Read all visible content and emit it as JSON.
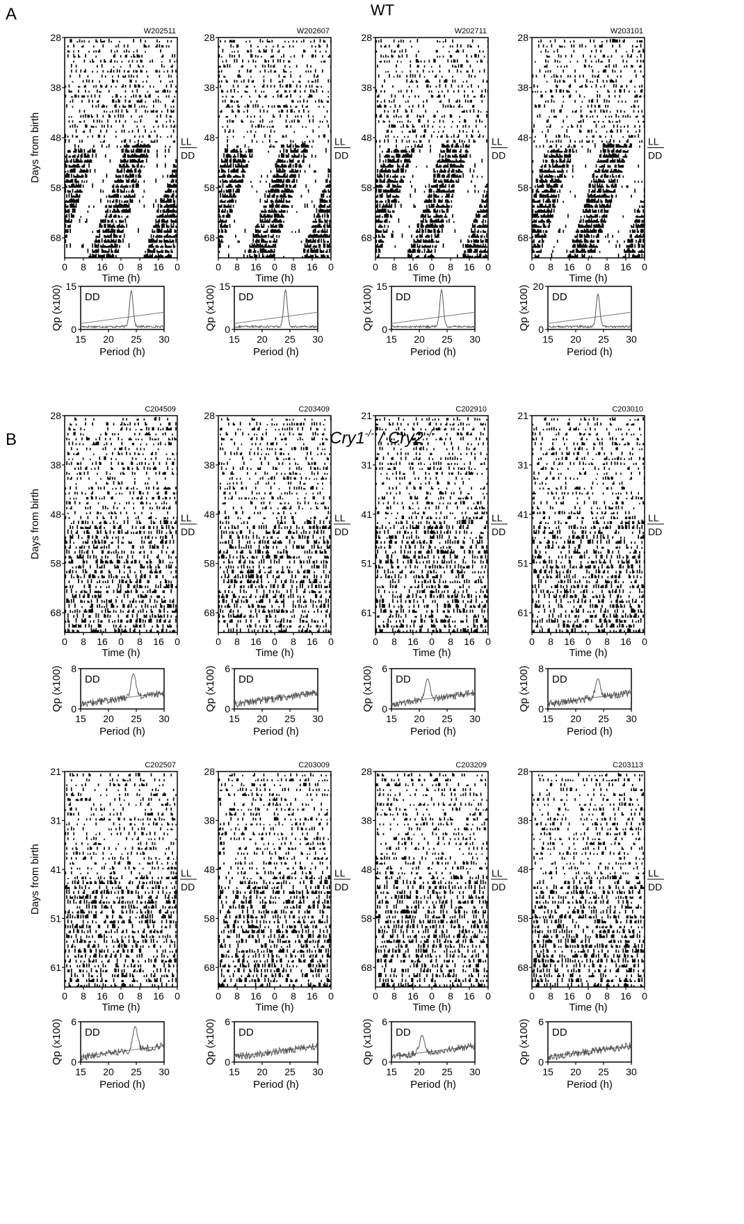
{
  "figure": {
    "panel_a": {
      "letter": "A",
      "group": "WT"
    },
    "panel_b": {
      "letter": "B",
      "group_parts": [
        "Cry1",
        "-/-",
        " / ",
        "Cry2",
        " -/-"
      ]
    },
    "ylabel": "Days from birth",
    "xlabel_time": "Time (h)",
    "xlabel_period": "Period (h)",
    "ylabel_qp": "Qp (x100)",
    "marker_top": "LL",
    "marker_bottom": "DD",
    "qp_tag": "DD",
    "time_ticks": [
      "0",
      "8",
      "16",
      "0",
      "8",
      "16",
      "0"
    ],
    "period_ticks": [
      "15",
      "20",
      "25",
      "30"
    ]
  },
  "chart_data": [
    {
      "type": "actogram",
      "panel": "A",
      "id": "W202511",
      "y_ticks": [
        "28",
        "38",
        "48",
        "58",
        "68"
      ],
      "y_start": 28,
      "days": 44,
      "transition_day": 50,
      "rhythmic": true,
      "periodogram": {
        "type": "line",
        "x": [
          15,
          30
        ],
        "ylim": [
          0,
          15
        ],
        "y_ticks": [
          "15",
          "0"
        ],
        "peak_period": 24.1,
        "peak_value": 13.5
      }
    },
    {
      "type": "actogram",
      "panel": "A",
      "id": "W202607",
      "y_ticks": [
        "28",
        "38",
        "48",
        "58",
        "68"
      ],
      "y_start": 28,
      "days": 44,
      "transition_day": 50,
      "rhythmic": true,
      "periodogram": {
        "type": "line",
        "x": [
          15,
          30
        ],
        "ylim": [
          0,
          15
        ],
        "y_ticks": [
          "15",
          "0"
        ],
        "peak_period": 24.2,
        "peak_value": 13.8
      }
    },
    {
      "type": "actogram",
      "panel": "A",
      "id": "W202711",
      "y_ticks": [
        "28",
        "38",
        "48",
        "58",
        "68"
      ],
      "y_start": 28,
      "days": 44,
      "transition_day": 50,
      "rhythmic": true,
      "periodogram": {
        "type": "line",
        "x": [
          15,
          30
        ],
        "ylim": [
          0,
          15
        ],
        "y_ticks": [
          "15",
          "0"
        ],
        "peak_period": 24.0,
        "peak_value": 13.8
      }
    },
    {
      "type": "actogram",
      "panel": "A",
      "id": "W203101",
      "y_ticks": [
        "28",
        "38",
        "48",
        "58",
        "68"
      ],
      "y_start": 28,
      "days": 44,
      "transition_day": 50,
      "rhythmic": true,
      "periodogram": {
        "type": "line",
        "x": [
          15,
          30
        ],
        "ylim": [
          0,
          20
        ],
        "y_ticks": [
          "20",
          "0"
        ],
        "peak_period": 24.0,
        "peak_value": 16.5
      }
    },
    {
      "type": "actogram",
      "panel": "B",
      "id": "C204509",
      "y_ticks": [
        "28",
        "38",
        "48",
        "58",
        "68"
      ],
      "y_start": 28,
      "days": 44,
      "transition_day": 50,
      "rhythmic": false,
      "periodogram": {
        "type": "line",
        "x": [
          15,
          30
        ],
        "ylim": [
          0,
          8
        ],
        "y_ticks": [
          "8",
          "0"
        ],
        "peak_period": 24.5,
        "peak_value": 7.0
      }
    },
    {
      "type": "actogram",
      "panel": "B",
      "id": "C203409",
      "y_ticks": [
        "28",
        "38",
        "48",
        "58",
        "68"
      ],
      "y_start": 28,
      "days": 44,
      "transition_day": 50,
      "rhythmic": false,
      "periodogram": {
        "type": "line",
        "x": [
          15,
          30
        ],
        "ylim": [
          0,
          6
        ],
        "y_ticks": [
          "6",
          "0"
        ],
        "peak_period": null,
        "peak_value": null
      }
    },
    {
      "type": "actogram",
      "panel": "B",
      "id": "C202910",
      "y_ticks": [
        "21",
        "31",
        "41",
        "51",
        "61"
      ],
      "y_start": 21,
      "days": 44,
      "transition_day": 43,
      "rhythmic": false,
      "periodogram": {
        "type": "line",
        "x": [
          15,
          30
        ],
        "ylim": [
          0,
          6
        ],
        "y_ticks": [
          "6",
          "0"
        ],
        "peak_period": 21.5,
        "peak_value": 4.5
      }
    },
    {
      "type": "actogram",
      "panel": "B",
      "id": "C203010",
      "y_ticks": [
        "21",
        "31",
        "41",
        "51",
        "61"
      ],
      "y_start": 21,
      "days": 44,
      "transition_day": 43,
      "rhythmic": false,
      "periodogram": {
        "type": "line",
        "x": [
          15,
          30
        ],
        "ylim": [
          0,
          8
        ],
        "y_ticks": [
          "8",
          "0"
        ],
        "peak_period": 24.0,
        "peak_value": 6.0
      }
    },
    {
      "type": "actogram",
      "panel": "B",
      "id": "C202507",
      "y_ticks": [
        "21",
        "31",
        "41",
        "51",
        "61"
      ],
      "y_start": 21,
      "days": 44,
      "transition_day": 43,
      "rhythmic": false,
      "periodogram": {
        "type": "line",
        "x": [
          15,
          30
        ],
        "ylim": [
          0,
          6
        ],
        "y_ticks": [
          "6",
          "0"
        ],
        "peak_period": 24.8,
        "peak_value": 5.3
      }
    },
    {
      "type": "actogram",
      "panel": "B",
      "id": "C203009",
      "y_ticks": [
        "28",
        "38",
        "48",
        "58",
        "68"
      ],
      "y_start": 28,
      "days": 44,
      "transition_day": 50,
      "rhythmic": false,
      "periodogram": {
        "type": "line",
        "x": [
          15,
          30
        ],
        "ylim": [
          0,
          6
        ],
        "y_ticks": [
          "6",
          "0"
        ],
        "peak_period": null,
        "peak_value": null
      }
    },
    {
      "type": "actogram",
      "panel": "B",
      "id": "C203209",
      "y_ticks": [
        "28",
        "38",
        "48",
        "58",
        "68"
      ],
      "y_start": 28,
      "days": 44,
      "transition_day": 50,
      "rhythmic": false,
      "periodogram": {
        "type": "line",
        "x": [
          15,
          30
        ],
        "ylim": [
          0,
          6
        ],
        "y_ticks": [
          "6",
          "0"
        ],
        "peak_period": 20.5,
        "peak_value": 4.0
      }
    },
    {
      "type": "actogram",
      "panel": "B",
      "id": "C203113",
      "y_ticks": [
        "28",
        "38",
        "48",
        "58",
        "68"
      ],
      "y_start": 28,
      "days": 44,
      "transition_day": 50,
      "rhythmic": false,
      "periodogram": {
        "type": "line",
        "x": [
          15,
          30
        ],
        "ylim": [
          0,
          6
        ],
        "y_ticks": [
          "6",
          "0"
        ],
        "peak_period": null,
        "peak_value": null
      }
    }
  ]
}
